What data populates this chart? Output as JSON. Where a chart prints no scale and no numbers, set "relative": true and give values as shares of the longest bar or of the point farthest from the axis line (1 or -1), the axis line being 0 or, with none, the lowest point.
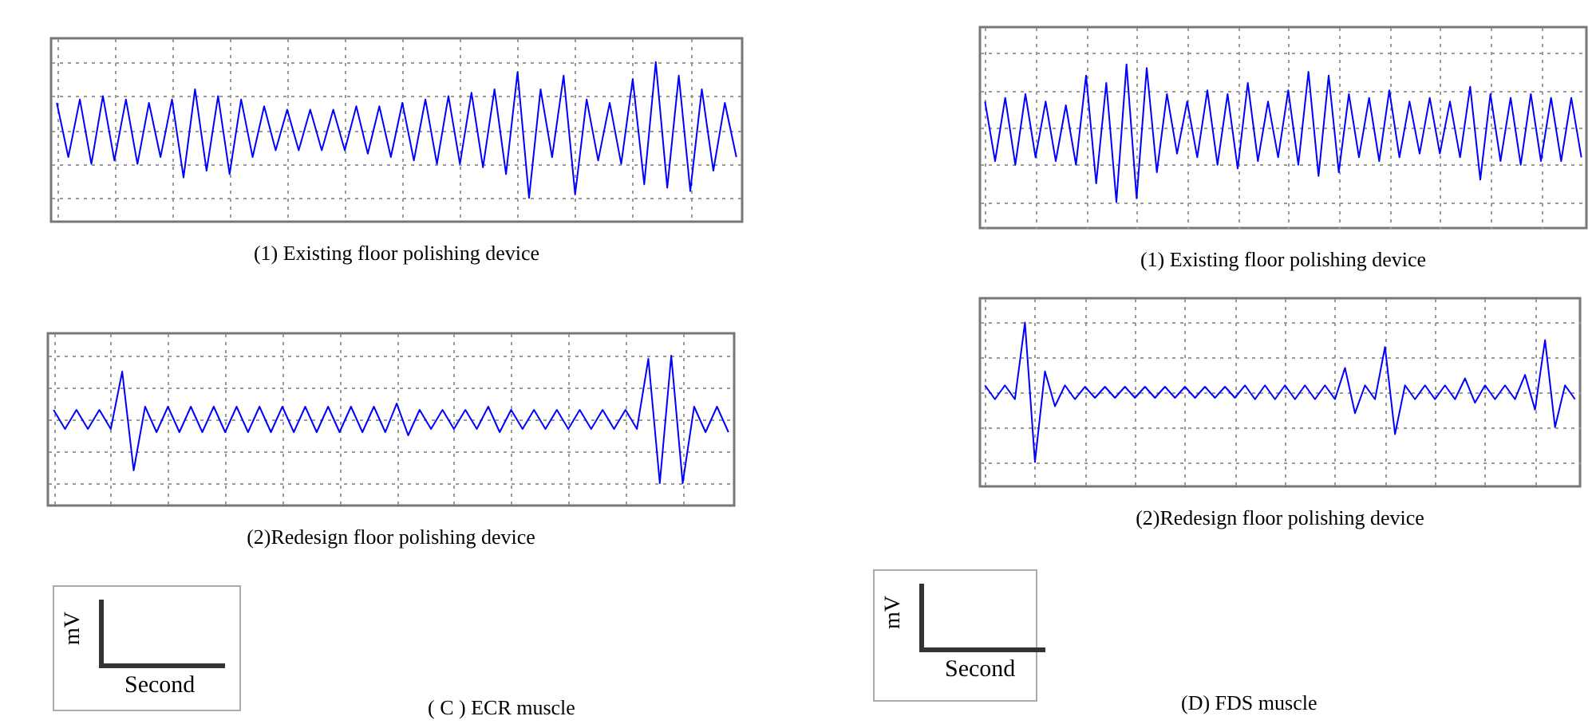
{
  "chart_data": [
    {
      "type": "line",
      "title": "(1) Existing floor polishing device",
      "relative": true,
      "grid": true,
      "categories": [
        null,
        null,
        null,
        null,
        null,
        null,
        null,
        null,
        null,
        null,
        null,
        null,
        null,
        null,
        null,
        null,
        null,
        null,
        null,
        null,
        null,
        null,
        null,
        null,
        null,
        null,
        null,
        null,
        null,
        null,
        null,
        null,
        null,
        null,
        null,
        null,
        null,
        null,
        null,
        null,
        null,
        null,
        null,
        null,
        null,
        null,
        null,
        null,
        null,
        null,
        null,
        null,
        null,
        null,
        null,
        null,
        null,
        null,
        null,
        null
      ],
      "series": [
        {
          "color": "#0000ff",
          "values": [
            0.4,
            -0.4,
            0.45,
            -0.5,
            0.5,
            -0.45,
            0.45,
            -0.5,
            0.4,
            -0.4,
            0.45,
            -0.7,
            0.6,
            -0.6,
            0.5,
            -0.65,
            0.45,
            -0.4,
            0.35,
            -0.3,
            0.3,
            -0.3,
            0.3,
            -0.3,
            0.3,
            -0.3,
            0.35,
            -0.35,
            0.35,
            -0.4,
            0.4,
            -0.45,
            0.45,
            -0.5,
            0.5,
            -0.5,
            0.55,
            -0.55,
            0.6,
            -0.65,
            0.85,
            -1,
            0.6,
            -0.4,
            0.8,
            -0.95,
            0.45,
            -0.45,
            0.4,
            -0.5,
            0.75,
            -0.8,
            1,
            -0.85,
            0.8,
            -0.9,
            0.6,
            -0.6,
            0.4,
            -0.4
          ]
        }
      ]
    },
    {
      "type": "line",
      "title": "(1) Existing floor polishing device",
      "relative": true,
      "grid": true,
      "categories": [
        null,
        null,
        null,
        null,
        null,
        null,
        null,
        null,
        null,
        null,
        null,
        null,
        null,
        null,
        null,
        null,
        null,
        null,
        null,
        null,
        null,
        null,
        null,
        null,
        null,
        null,
        null,
        null,
        null,
        null,
        null,
        null,
        null,
        null,
        null,
        null,
        null,
        null,
        null,
        null,
        null,
        null,
        null,
        null,
        null,
        null,
        null,
        null,
        null,
        null,
        null,
        null,
        null,
        null,
        null,
        null,
        null,
        null,
        null,
        null
      ],
      "series": [
        {
          "color": "#0000ff",
          "values": [
            0.35,
            -0.45,
            0.4,
            -0.5,
            0.45,
            -0.4,
            0.35,
            -0.45,
            0.3,
            -0.5,
            0.7,
            -0.75,
            0.6,
            -1,
            0.85,
            -0.95,
            0.8,
            -0.6,
            0.45,
            -0.35,
            0.35,
            -0.4,
            0.5,
            -0.5,
            0.45,
            -0.55,
            0.6,
            -0.45,
            0.35,
            -0.4,
            0.5,
            -0.5,
            0.75,
            -0.65,
            0.7,
            -0.6,
            0.45,
            -0.4,
            0.4,
            -0.45,
            0.5,
            -0.4,
            0.35,
            -0.35,
            0.4,
            -0.35,
            0.35,
            -0.4,
            0.55,
            -0.7,
            0.45,
            -0.45,
            0.4,
            -0.5,
            0.45,
            -0.45,
            0.4,
            -0.45,
            0.4,
            -0.4
          ]
        }
      ]
    },
    {
      "type": "line",
      "title": "(2)Redesign floor polishing device",
      "relative": true,
      "grid": true,
      "categories": [
        null,
        null,
        null,
        null,
        null,
        null,
        null,
        null,
        null,
        null,
        null,
        null,
        null,
        null,
        null,
        null,
        null,
        null,
        null,
        null,
        null,
        null,
        null,
        null,
        null,
        null,
        null,
        null,
        null,
        null,
        null,
        null,
        null,
        null,
        null,
        null,
        null,
        null,
        null,
        null,
        null,
        null,
        null,
        null,
        null,
        null,
        null,
        null,
        null,
        null,
        null,
        null,
        null,
        null,
        null,
        null,
        null,
        null,
        null,
        null
      ],
      "series": [
        {
          "color": "#0000ff",
          "values": [
            0.15,
            -0.15,
            0.15,
            -0.15,
            0.15,
            -0.15,
            0.75,
            -0.8,
            0.2,
            -0.2,
            0.2,
            -0.2,
            0.2,
            -0.2,
            0.2,
            -0.2,
            0.2,
            -0.2,
            0.2,
            -0.2,
            0.2,
            -0.2,
            0.2,
            -0.2,
            0.2,
            -0.2,
            0.2,
            -0.2,
            0.2,
            -0.2,
            0.25,
            -0.25,
            0.15,
            -0.15,
            0.15,
            -0.15,
            0.15,
            -0.15,
            0.2,
            -0.2,
            0.15,
            -0.15,
            0.15,
            -0.15,
            0.15,
            -0.15,
            0.15,
            -0.15,
            0.15,
            -0.15,
            0.15,
            -0.15,
            0.95,
            -1,
            1,
            -1,
            0.2,
            -0.2,
            0.2,
            -0.2
          ]
        }
      ]
    },
    {
      "type": "line",
      "title": "(2)Redesign floor polishing device",
      "relative": true,
      "grid": true,
      "categories": [
        null,
        null,
        null,
        null,
        null,
        null,
        null,
        null,
        null,
        null,
        null,
        null,
        null,
        null,
        null,
        null,
        null,
        null,
        null,
        null,
        null,
        null,
        null,
        null,
        null,
        null,
        null,
        null,
        null,
        null,
        null,
        null,
        null,
        null,
        null,
        null,
        null,
        null,
        null,
        null,
        null,
        null,
        null,
        null,
        null,
        null,
        null,
        null,
        null,
        null,
        null,
        null,
        null,
        null,
        null,
        null,
        null,
        null,
        null,
        null
      ],
      "series": [
        {
          "color": "#0000ff",
          "values": [
            0.1,
            -0.1,
            0.1,
            -0.1,
            1,
            -1,
            0.3,
            -0.2,
            0.1,
            -0.1,
            0.08,
            -0.08,
            0.08,
            -0.08,
            0.08,
            -0.08,
            0.08,
            -0.08,
            0.08,
            -0.08,
            0.08,
            -0.08,
            0.08,
            -0.08,
            0.08,
            -0.08,
            0.1,
            -0.1,
            0.1,
            -0.1,
            0.1,
            -0.1,
            0.1,
            -0.1,
            0.1,
            -0.1,
            0.35,
            -0.3,
            0.1,
            -0.1,
            0.65,
            -0.6,
            0.1,
            -0.1,
            0.1,
            -0.1,
            0.1,
            -0.1,
            0.2,
            -0.15,
            0.1,
            -0.1,
            0.1,
            -0.1,
            0.25,
            -0.25,
            0.75,
            -0.5,
            0.1,
            -0.1
          ]
        }
      ]
    },
    {
      "type": "other",
      "xlabel": "Second",
      "ylabel": "mV",
      "annotations": [
        "( C ) ECR muscle"
      ]
    },
    {
      "type": "other",
      "xlabel": "Second",
      "ylabel": "mV",
      "annotations": [
        "(D)  FDS muscle"
      ]
    }
  ]
}
